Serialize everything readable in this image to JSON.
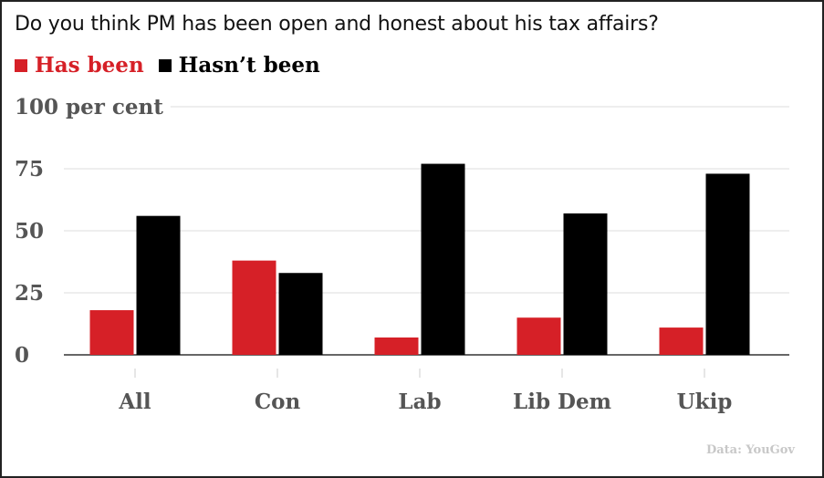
{
  "chart_data": {
    "type": "bar",
    "title": "Do you think PM has been open and honest about his tax affairs?",
    "categories": [
      "All",
      "Con",
      "Lab",
      "Lib Dem",
      "Ukip"
    ],
    "series": [
      {
        "name": "Has been",
        "color": "#d62027",
        "values": [
          18,
          38,
          7,
          15,
          11
        ]
      },
      {
        "name": "Hasn’t been",
        "color": "#000000",
        "values": [
          56,
          33,
          77,
          57,
          73
        ]
      }
    ],
    "yticks": [
      0,
      25,
      50,
      75,
      100
    ],
    "ytick_labels": [
      "0",
      "25",
      "50",
      "75",
      "100 per cent"
    ],
    "ylim": [
      0,
      100
    ],
    "xlabel": "",
    "ylabel": "",
    "grid": true,
    "legend_position": "top-left",
    "source": "Data: YouGov"
  }
}
